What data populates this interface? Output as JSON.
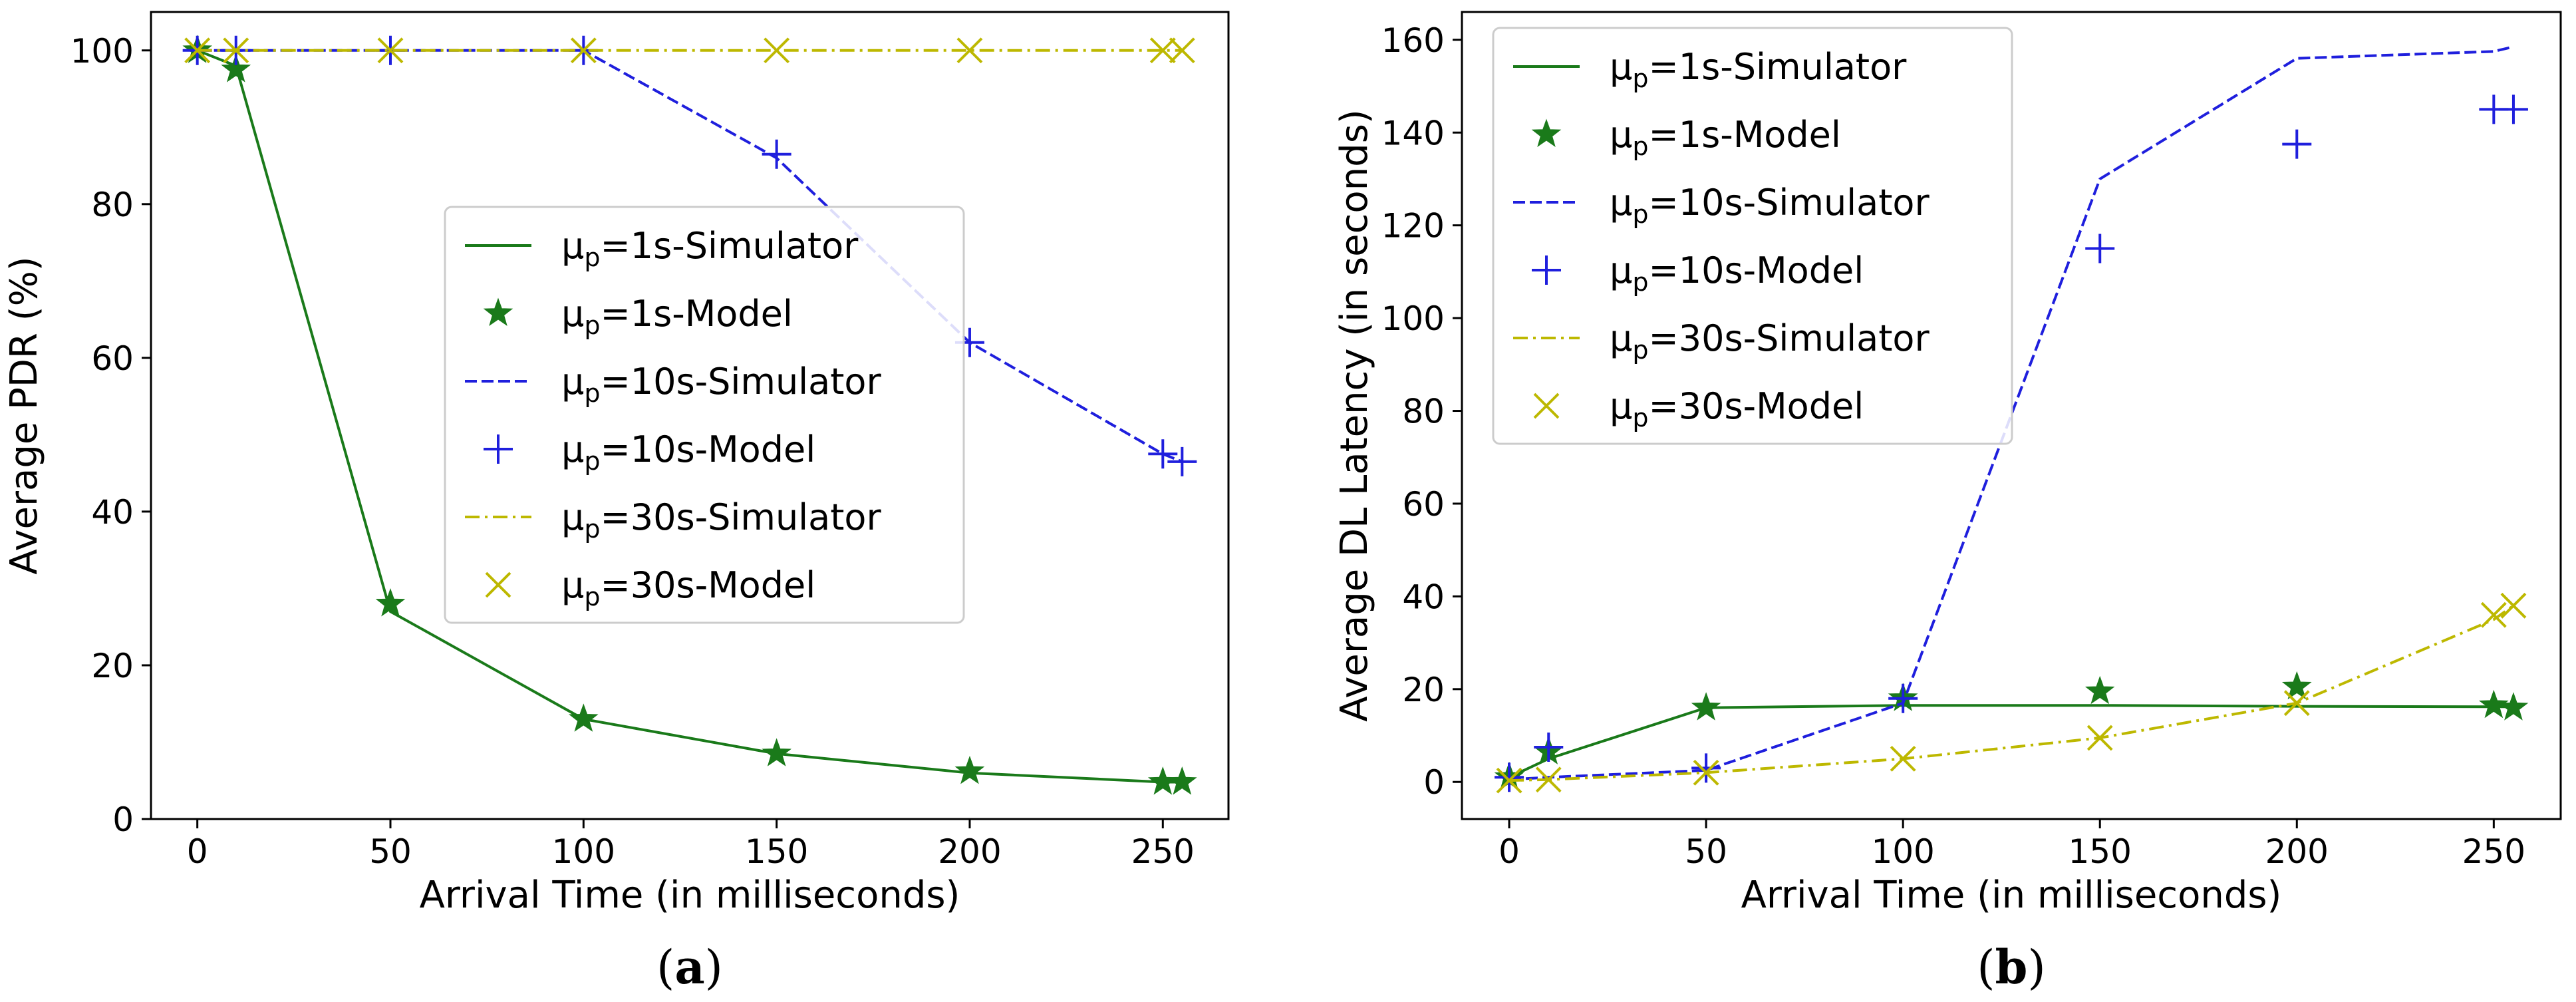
{
  "chart_data": [
    {
      "type": "line",
      "panel": "a",
      "caption": {
        "open": "(",
        "label": "a",
        "close": ")"
      },
      "xlabel": "Arrival Time (in milliseconds)",
      "ylabel": "Average PDR (%)",
      "xlim": [
        -12,
        267
      ],
      "ylim": [
        0,
        105
      ],
      "xticks": [
        0,
        50,
        100,
        150,
        200,
        250
      ],
      "yticks": [
        0,
        20,
        40,
        60,
        80,
        100
      ],
      "legend_position": "center-right",
      "series": [
        {
          "name": "1s-Simulator",
          "mu_label": "μ",
          "mu_sub": "p",
          "label_rest": "=1s-Simulator",
          "kind": "line",
          "color": "#1a7a1a",
          "dash": "solid",
          "x": [
            0,
            10,
            50,
            100,
            150,
            200,
            250,
            255
          ],
          "y": [
            100,
            98,
            27,
            13,
            8.5,
            6,
            4.8,
            4.8
          ]
        },
        {
          "name": "1s-Model",
          "mu_label": "μ",
          "mu_sub": "p",
          "label_rest": "=1s-Model",
          "kind": "marker",
          "marker": "star",
          "color": "#1a7a1a",
          "x": [
            0,
            10,
            50,
            100,
            150,
            200,
            250,
            255
          ],
          "y": [
            100,
            97.5,
            28,
            13,
            8.5,
            6.2,
            4.8,
            4.8
          ]
        },
        {
          "name": "10s-Simulator",
          "mu_label": "μ",
          "mu_sub": "p",
          "label_rest": "=10s-Simulator",
          "kind": "line",
          "color": "#1f1fdd",
          "dash": "dashed",
          "x": [
            0,
            10,
            50,
            100,
            150,
            200,
            250,
            255
          ],
          "y": [
            100,
            100,
            100,
            100,
            86,
            62,
            47.5,
            46.5
          ]
        },
        {
          "name": "10s-Model",
          "mu_label": "μ",
          "mu_sub": "p",
          "label_rest": "=10s-Model",
          "kind": "marker",
          "marker": "plus",
          "color": "#1f1fdd",
          "x": [
            0,
            10,
            50,
            100,
            150,
            200,
            250,
            255
          ],
          "y": [
            100,
            100,
            100,
            100,
            86.5,
            62,
            47.5,
            46.5
          ]
        },
        {
          "name": "30s-Simulator",
          "mu_label": "μ",
          "mu_sub": "p",
          "label_rest": "=30s-Simulator",
          "kind": "line",
          "color": "#bdb800",
          "dash": "dashdot",
          "x": [
            0,
            10,
            50,
            100,
            150,
            200,
            250,
            255
          ],
          "y": [
            100,
            100,
            100,
            100,
            100,
            100,
            100,
            100
          ]
        },
        {
          "name": "30s-Model",
          "mu_label": "μ",
          "mu_sub": "p",
          "label_rest": "=30s-Model",
          "kind": "marker",
          "marker": "x",
          "color": "#bdb800",
          "x": [
            0,
            10,
            50,
            100,
            150,
            200,
            250,
            255
          ],
          "y": [
            100,
            100,
            100,
            100,
            100,
            100,
            100,
            100
          ]
        }
      ]
    },
    {
      "type": "line",
      "panel": "b",
      "caption": {
        "open": "(",
        "label": "b",
        "close": ")"
      },
      "xlabel": "Arrival Time (in milliseconds)",
      "ylabel": "Average DL Latency (in seconds)",
      "xlim": [
        -12,
        267
      ],
      "ylim": [
        -8,
        166
      ],
      "xticks": [
        0,
        50,
        100,
        150,
        200,
        250
      ],
      "yticks": [
        0,
        20,
        40,
        60,
        80,
        100,
        120,
        140,
        160
      ],
      "legend_position": "top-left",
      "series": [
        {
          "name": "1s-Simulator",
          "mu_label": "μ",
          "mu_sub": "p",
          "label_rest": "=1s-Simulator",
          "kind": "line",
          "color": "#1a7a1a",
          "dash": "solid",
          "x": [
            0,
            10,
            50,
            100,
            150,
            200,
            250,
            255
          ],
          "y": [
            1,
            5,
            16,
            16.5,
            16.5,
            16.3,
            16.2,
            16.2
          ]
        },
        {
          "name": "1s-Model",
          "mu_label": "μ",
          "mu_sub": "p",
          "label_rest": "=1s-Model",
          "kind": "marker",
          "marker": "star",
          "color": "#1a7a1a",
          "x": [
            0,
            10,
            50,
            100,
            150,
            200,
            250,
            255
          ],
          "y": [
            1,
            6.5,
            16,
            18,
            19.5,
            20.5,
            16.5,
            16
          ]
        },
        {
          "name": "10s-Simulator",
          "mu_label": "μ",
          "mu_sub": "p",
          "label_rest": "=10s-Simulator",
          "kind": "line",
          "color": "#1f1fdd",
          "dash": "dashed",
          "x": [
            0,
            10,
            50,
            100,
            150,
            200,
            250,
            255
          ],
          "y": [
            0.5,
            1,
            2.5,
            17,
            130,
            156,
            157.5,
            158.5
          ]
        },
        {
          "name": "10s-Model",
          "mu_label": "μ",
          "mu_sub": "p",
          "label_rest": "=10s-Model",
          "kind": "marker",
          "marker": "plus",
          "color": "#1f1fdd",
          "x": [
            0,
            10,
            50,
            100,
            150,
            200,
            250,
            255
          ],
          "y": [
            1,
            7.5,
            3,
            18,
            115,
            137.5,
            145,
            145
          ]
        },
        {
          "name": "30s-Simulator",
          "mu_label": "μ",
          "mu_sub": "p",
          "label_rest": "=30s-Simulator",
          "kind": "line",
          "color": "#bdb800",
          "dash": "dashdot",
          "x": [
            0,
            10,
            50,
            100,
            150,
            200,
            250,
            255
          ],
          "y": [
            0.3,
            0.5,
            2,
            5,
            9.5,
            17,
            35,
            38
          ]
        },
        {
          "name": "30s-Model",
          "mu_label": "μ",
          "mu_sub": "p",
          "label_rest": "=30s-Model",
          "kind": "marker",
          "marker": "x",
          "color": "#bdb800",
          "x": [
            0,
            10,
            50,
            100,
            150,
            200,
            250,
            255
          ],
          "y": [
            0.3,
            0.5,
            2,
            5,
            9.5,
            17,
            36,
            38
          ]
        }
      ]
    }
  ]
}
